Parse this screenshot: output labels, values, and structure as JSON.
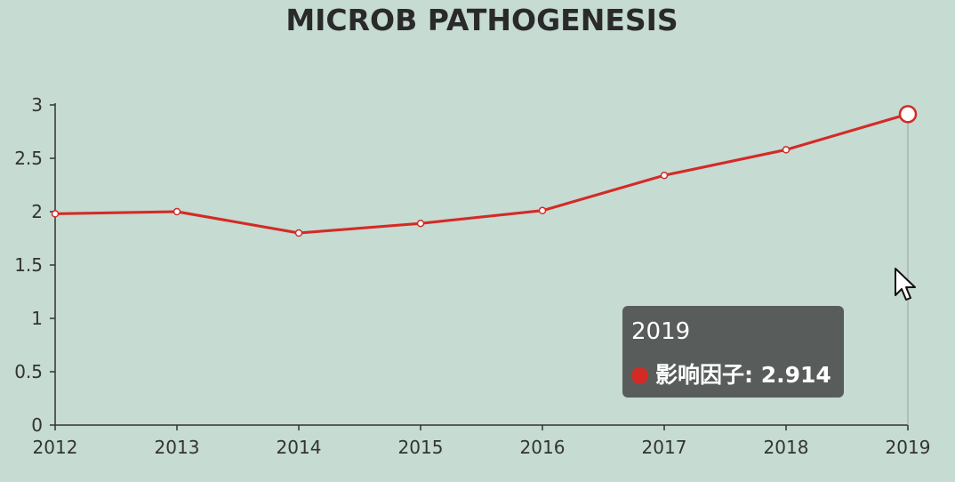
{
  "chart_data": {
    "type": "line",
    "title": "MICROB PATHOGENESIS",
    "x": [
      "2012",
      "2013",
      "2014",
      "2015",
      "2016",
      "2017",
      "2018",
      "2019"
    ],
    "yticks": [
      "0",
      "0.5",
      "1",
      "1.5",
      "2",
      "2.5",
      "3"
    ],
    "ylim": [
      0,
      3
    ],
    "series": [
      {
        "name": "影响因子",
        "values": [
          1.98,
          2.0,
          1.8,
          1.89,
          2.01,
          2.34,
          2.58,
          2.914
        ]
      }
    ],
    "grid": false,
    "highlight_index": 7
  },
  "tooltip": {
    "header": "2019",
    "series_name": "影响因子",
    "value_text": "2.914"
  },
  "colors": {
    "line": "#d42a26",
    "background": "#c6dbd2",
    "axis": "#333333",
    "tooltip_bg": "#585c5a"
  }
}
